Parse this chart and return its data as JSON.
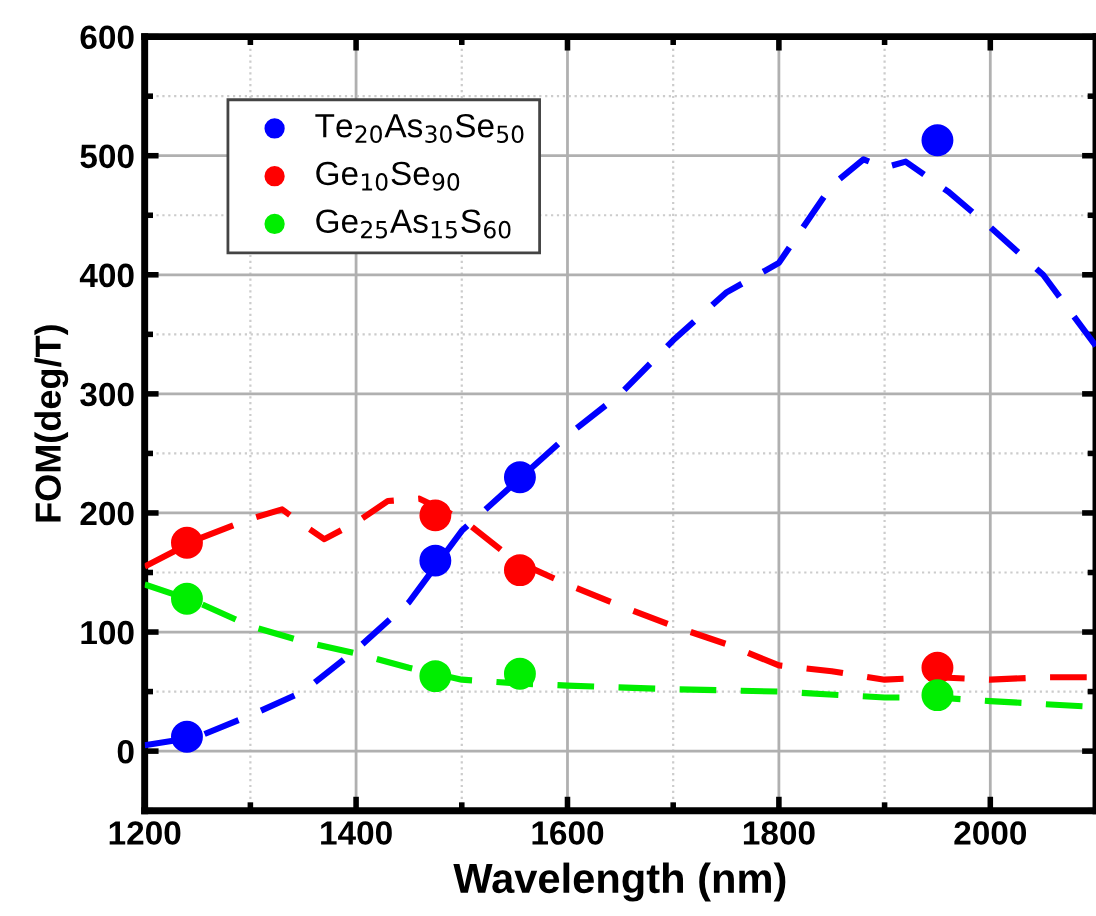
{
  "chart_data": {
    "type": "scatter",
    "xlabel": "Wavelength (nm)",
    "ylabel": "FOM(deg/T)",
    "xlim": [
      1200,
      2100
    ],
    "xticks": [
      1200,
      1400,
      1600,
      1800,
      2000
    ],
    "ylim": [
      -50,
      600
    ],
    "yticks": [
      0,
      100,
      200,
      300,
      400,
      500,
      600
    ],
    "grid": true,
    "legend": "top left",
    "series": [
      {
        "name": "Te$_{20}$As$_{30}$Se$_{50}$",
        "marker": "circle",
        "color": "#0000ff",
        "x": [
          1240,
          1475,
          1555,
          1950
        ],
        "values": [
          12,
          160,
          230,
          513
        ]
      },
      {
        "name": "Ge$_{10}$Se$_{90}$",
        "marker": "circle",
        "color": "#ff0000",
        "x": [
          1240,
          1475,
          1555,
          1950
        ],
        "values": [
          175,
          198,
          152,
          70
        ]
      },
      {
        "name": "Ge$_{25}$As$_{15}$S$_{60}$",
        "marker": "circle",
        "color": "#00ee00",
        "x": [
          1240,
          1475,
          1555,
          1950
        ],
        "values": [
          128,
          63,
          65,
          47
        ]
      },
      {
        "type": "line",
        "marker": "none",
        "line_style": "dashed",
        "color": "#0000ff",
        "x": [
          1200,
          1250,
          1300,
          1350,
          1400,
          1450,
          1500,
          1550,
          1600,
          1650,
          1700,
          1750,
          1800,
          1850,
          1880,
          1900,
          1920,
          1960,
          2000,
          2050,
          2100
        ],
        "values": [
          5,
          12,
          30,
          50,
          85,
          125,
          185,
          225,
          265,
          300,
          345,
          385,
          410,
          475,
          497,
          490,
          495,
          470,
          440,
          400,
          340
        ]
      },
      {
        "type": "line",
        "marker": "none",
        "line_style": "dashed",
        "color": "#ff0000",
        "x": [
          1200,
          1250,
          1300,
          1330,
          1350,
          1370,
          1400,
          1430,
          1460,
          1500,
          1550,
          1600,
          1650,
          1700,
          1750,
          1800,
          1850,
          1900,
          1950,
          2000,
          2050,
          2100
        ],
        "values": [
          155,
          178,
          195,
          203,
          190,
          178,
          192,
          210,
          212,
          195,
          160,
          140,
          122,
          105,
          90,
          72,
          67,
          60,
          62,
          60,
          62,
          62
        ]
      },
      {
        "type": "line",
        "marker": "none",
        "line_style": "dashed",
        "color": "#00ee00",
        "x": [
          1200,
          1250,
          1300,
          1350,
          1400,
          1450,
          1500,
          1550,
          1600,
          1700,
          1800,
          1900,
          1950,
          2000,
          2100
        ],
        "values": [
          140,
          125,
          105,
          92,
          82,
          70,
          60,
          57,
          55,
          52,
          50,
          45,
          45,
          42,
          37
        ]
      }
    ]
  }
}
